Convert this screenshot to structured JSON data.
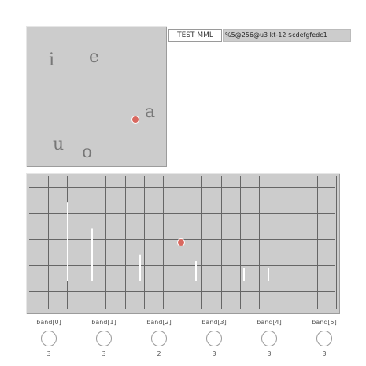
{
  "vowel_pad": {
    "vowels": [
      "i",
      "e",
      "a",
      "u",
      "o"
    ]
  },
  "mml": {
    "button_label": "TEST MML",
    "value": "%5@256@u3 kt-12 $cdefgfedc1"
  },
  "equalizer": {
    "grid_color": "#666666",
    "bar_color": "#ffffff",
    "cursor_color": "#d8685f",
    "bars": [
      0.96,
      0.64,
      0.32,
      0.24,
      0.16,
      0.16
    ]
  },
  "bands": [
    {
      "label": "band[0]",
      "value": "3"
    },
    {
      "label": "band[1]",
      "value": "3"
    },
    {
      "label": "band[2]",
      "value": "2"
    },
    {
      "label": "band[3]",
      "value": "3"
    },
    {
      "label": "band[4]",
      "value": "3"
    },
    {
      "label": "band[5]",
      "value": "3"
    }
  ]
}
